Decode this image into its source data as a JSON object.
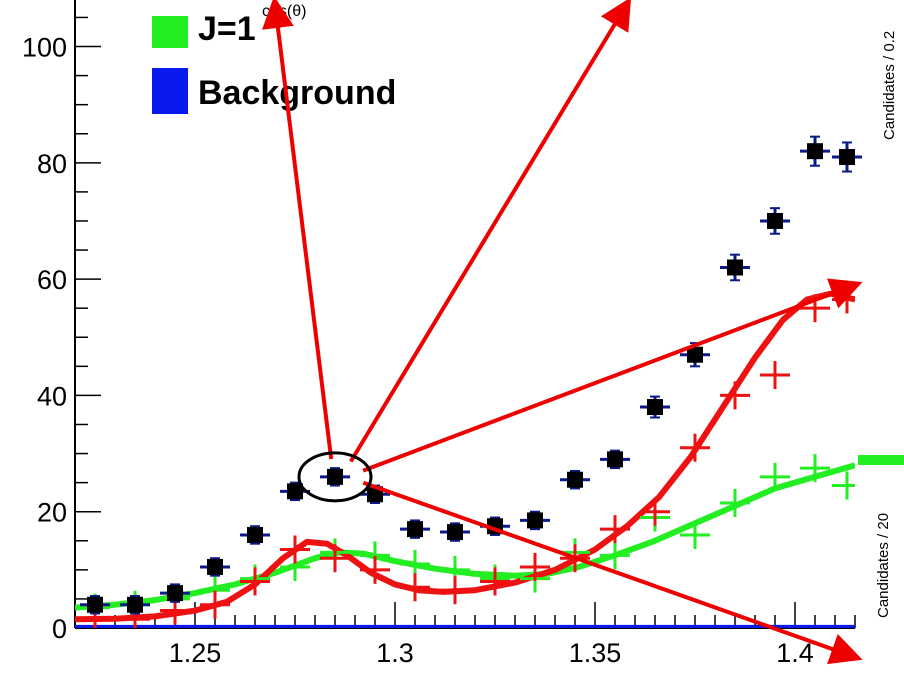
{
  "chart_data": {
    "type": "scatter",
    "title": "",
    "xlabel": "",
    "ylabel": "",
    "xlim": [
      1.22,
      1.415
    ],
    "ylim": [
      0,
      108
    ],
    "x_ticks": [
      {
        "value": 1.25,
        "label": "1.25"
      },
      {
        "value": 1.3,
        "label": "1.3"
      },
      {
        "value": 1.35,
        "label": "1.35"
      },
      {
        "value": 1.4,
        "label": "1.4"
      }
    ],
    "y_ticks": [
      {
        "value": 0,
        "label": "0"
      },
      {
        "value": 20,
        "label": "20"
      },
      {
        "value": 40,
        "label": "40"
      },
      {
        "value": 60,
        "label": "60"
      },
      {
        "value": 80,
        "label": "80"
      },
      {
        "value": 100,
        "label": "100"
      }
    ],
    "top_label": "cos(θ)",
    "right_labels": [
      "Candidates / 0.2",
      "Candidates / 20"
    ],
    "legend": [
      {
        "label": "J=1",
        "color": "#22ee22"
      },
      {
        "label": "Background",
        "color": "#0a1aee"
      }
    ],
    "colors": {
      "data": "#000000",
      "errors": "#0a1a8a",
      "red": "#ee1111",
      "green": "#22ee22",
      "blue": "#0a1aee",
      "arrows": "#ee0000"
    },
    "data_points": [
      {
        "x": 1.225,
        "y": 4.0,
        "yerr": 1.5
      },
      {
        "x": 1.235,
        "y": 4.0,
        "yerr": 1.5
      },
      {
        "x": 1.245,
        "y": 6.0,
        "yerr": 1.5
      },
      {
        "x": 1.255,
        "y": 10.5,
        "yerr": 1.5
      },
      {
        "x": 1.265,
        "y": 16.0,
        "yerr": 1.5
      },
      {
        "x": 1.275,
        "y": 23.5,
        "yerr": 1.5
      },
      {
        "x": 1.285,
        "y": 26.0,
        "yerr": 1.5
      },
      {
        "x": 1.295,
        "y": 23.0,
        "yerr": 1.5
      },
      {
        "x": 1.305,
        "y": 17.0,
        "yerr": 1.5
      },
      {
        "x": 1.315,
        "y": 16.5,
        "yerr": 1.5
      },
      {
        "x": 1.325,
        "y": 17.5,
        "yerr": 1.5
      },
      {
        "x": 1.335,
        "y": 18.5,
        "yerr": 1.5
      },
      {
        "x": 1.345,
        "y": 25.5,
        "yerr": 1.5
      },
      {
        "x": 1.355,
        "y": 29.0,
        "yerr": 1.5
      },
      {
        "x": 1.365,
        "y": 38.0,
        "yerr": 1.8
      },
      {
        "x": 1.375,
        "y": 47.0,
        "yerr": 2.0
      },
      {
        "x": 1.385,
        "y": 62.0,
        "yerr": 2.2
      },
      {
        "x": 1.395,
        "y": 70.0,
        "yerr": 2.2
      },
      {
        "x": 1.405,
        "y": 82.0,
        "yerr": 2.5
      },
      {
        "x": 1.413,
        "y": 81.0,
        "yerr": 2.5
      }
    ],
    "red_points": [
      {
        "x": 1.225,
        "y": 1.5
      },
      {
        "x": 1.235,
        "y": 1.5
      },
      {
        "x": 1.245,
        "y": 3.0
      },
      {
        "x": 1.255,
        "y": 4.0
      },
      {
        "x": 1.265,
        "y": 8.0
      },
      {
        "x": 1.275,
        "y": 13.5
      },
      {
        "x": 1.285,
        "y": 12.0
      },
      {
        "x": 1.295,
        "y": 10.0
      },
      {
        "x": 1.305,
        "y": 7.0
      },
      {
        "x": 1.315,
        "y": 6.5
      },
      {
        "x": 1.325,
        "y": 8.0
      },
      {
        "x": 1.335,
        "y": 10.5
      },
      {
        "x": 1.345,
        "y": 12.0
      },
      {
        "x": 1.355,
        "y": 17.0
      },
      {
        "x": 1.365,
        "y": 20.0
      },
      {
        "x": 1.375,
        "y": 31.0
      },
      {
        "x": 1.385,
        "y": 40.0
      },
      {
        "x": 1.395,
        "y": 43.5
      },
      {
        "x": 1.405,
        "y": 55.0
      },
      {
        "x": 1.413,
        "y": 56.5
      }
    ],
    "green_points": [
      {
        "x": 1.225,
        "y": 3.5
      },
      {
        "x": 1.235,
        "y": 4.0
      },
      {
        "x": 1.245,
        "y": 5.0
      },
      {
        "x": 1.255,
        "y": 6.5
      },
      {
        "x": 1.265,
        "y": 8.5
      },
      {
        "x": 1.275,
        "y": 10.5
      },
      {
        "x": 1.285,
        "y": 13.0
      },
      {
        "x": 1.295,
        "y": 12.5
      },
      {
        "x": 1.305,
        "y": 11.0
      },
      {
        "x": 1.315,
        "y": 10.0
      },
      {
        "x": 1.325,
        "y": 8.5
      },
      {
        "x": 1.335,
        "y": 8.5
      },
      {
        "x": 1.345,
        "y": 13.0
      },
      {
        "x": 1.355,
        "y": 12.5
      },
      {
        "x": 1.365,
        "y": 19.0
      },
      {
        "x": 1.375,
        "y": 16.0
      },
      {
        "x": 1.385,
        "y": 21.5
      },
      {
        "x": 1.395,
        "y": 26.0
      },
      {
        "x": 1.405,
        "y": 27.5
      },
      {
        "x": 1.413,
        "y": 24.5
      }
    ],
    "red_curve": [
      [
        1.22,
        1.5
      ],
      [
        1.23,
        1.6
      ],
      [
        1.24,
        2.0
      ],
      [
        1.25,
        3.0
      ],
      [
        1.258,
        4.5
      ],
      [
        1.265,
        7.5
      ],
      [
        1.272,
        12.0
      ],
      [
        1.278,
        14.8
      ],
      [
        1.283,
        14.5
      ],
      [
        1.288,
        12.5
      ],
      [
        1.294,
        9.5
      ],
      [
        1.3,
        7.5
      ],
      [
        1.306,
        6.5
      ],
      [
        1.312,
        6.2
      ],
      [
        1.32,
        6.5
      ],
      [
        1.33,
        7.8
      ],
      [
        1.34,
        10.0
      ],
      [
        1.35,
        13.5
      ],
      [
        1.358,
        17.5
      ],
      [
        1.366,
        22.5
      ],
      [
        1.374,
        29.5
      ],
      [
        1.382,
        38.0
      ],
      [
        1.39,
        46.5
      ],
      [
        1.397,
        53.0
      ],
      [
        1.403,
        56.5
      ],
      [
        1.409,
        57.5
      ],
      [
        1.415,
        56.5
      ]
    ],
    "green_curve": [
      [
        1.22,
        3.5
      ],
      [
        1.23,
        4.0
      ],
      [
        1.24,
        4.8
      ],
      [
        1.25,
        6.0
      ],
      [
        1.26,
        7.5
      ],
      [
        1.27,
        9.5
      ],
      [
        1.28,
        12.0
      ],
      [
        1.286,
        13.0
      ],
      [
        1.292,
        12.8
      ],
      [
        1.3,
        11.5
      ],
      [
        1.31,
        10.2
      ],
      [
        1.32,
        9.3
      ],
      [
        1.33,
        9.0
      ],
      [
        1.338,
        9.3
      ],
      [
        1.346,
        10.5
      ],
      [
        1.355,
        12.5
      ],
      [
        1.365,
        15.0
      ],
      [
        1.375,
        18.0
      ],
      [
        1.385,
        21.0
      ],
      [
        1.395,
        24.0
      ],
      [
        1.405,
        26.0
      ],
      [
        1.415,
        28.0
      ]
    ],
    "background_level": 0.2,
    "annotation": {
      "ellipse_center": {
        "x": 1.285,
        "y": 26.0
      },
      "arrows": [
        {
          "x": 1.27,
          "y": 112
        },
        {
          "x": 1.358,
          "y": 112
        },
        {
          "x": 1.415,
          "y": 59
        },
        {
          "x": 1.415,
          "y": -5
        }
      ]
    }
  }
}
